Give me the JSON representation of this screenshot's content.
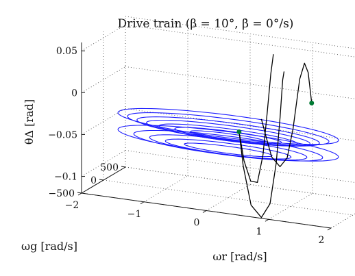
{
  "chart_data": {
    "type": "line3d",
    "title": "Drive train (β = 10°, β̇ = 0°/s)",
    "xlabel": "ωr [rad/s]",
    "ylabel": "ωg [rad/s]",
    "zlabel": "θΔ [rad]",
    "x_ticks": [
      "−2",
      "−1",
      "0",
      "1",
      "2"
    ],
    "y_ticks": [
      "500",
      "0",
      "−500"
    ],
    "z_ticks": [
      "0.05",
      "0",
      "−0.05",
      "−0.1"
    ],
    "xlim": [
      -2,
      2
    ],
    "ylim": [
      -500,
      500
    ],
    "zlim": [
      -0.12,
      0.06
    ],
    "grid": true,
    "series": [
      {
        "kind": "limit-cycle",
        "color": "#1a1aff",
        "rings": [
          {
            "rx": 1.75,
            "ry": 360,
            "z": -0.035
          },
          {
            "rx": 1.6,
            "ry": 320,
            "z": -0.038
          },
          {
            "rx": 1.45,
            "ry": 280,
            "z": -0.041
          },
          {
            "rx": 1.3,
            "ry": 240,
            "z": -0.043
          },
          {
            "rx": 1.1,
            "ry": 190,
            "z": -0.045
          },
          {
            "rx": 0.85,
            "ry": 140,
            "z": -0.046
          },
          {
            "rx": 0.6,
            "ry": 90,
            "z": -0.047
          },
          {
            "rx": 1.75,
            "ry": 360,
            "z": -0.055
          },
          {
            "rx": 1.5,
            "ry": 300,
            "z": -0.058
          },
          {
            "rx": 1.25,
            "ry": 240,
            "z": -0.06
          },
          {
            "rx": 1.0,
            "ry": 180,
            "z": -0.062
          },
          {
            "rx": 0.7,
            "ry": 110,
            "z": -0.063
          }
        ]
      },
      {
        "kind": "trajectory",
        "color": "#000000",
        "points": [
          [
            0.35,
            -250,
            -0.03
          ],
          [
            0.42,
            -255,
            -0.07
          ],
          [
            0.55,
            -262,
            -0.115
          ],
          [
            0.72,
            -268,
            -0.128
          ],
          [
            0.86,
            -270,
            -0.11
          ],
          [
            0.96,
            -270,
            -0.06
          ],
          [
            1.02,
            -268,
            -0.005
          ],
          [
            1.06,
            -265,
            0.04
          ],
          [
            1.08,
            -262,
            0.05
          ]
        ]
      },
      {
        "kind": "trajectory",
        "color": "#000000",
        "points": [
          [
            0.35,
            -250,
            -0.03
          ],
          [
            0.4,
            -210,
            -0.065
          ],
          [
            0.48,
            -170,
            -0.09
          ],
          [
            0.56,
            -130,
            -0.092
          ],
          [
            0.62,
            -90,
            -0.06
          ],
          [
            0.66,
            -50,
            -0.01
          ],
          [
            0.69,
            -10,
            0.035
          ],
          [
            0.71,
            20,
            0.058
          ]
        ]
      },
      {
        "kind": "trajectory",
        "color": "#000000",
        "points": [
          [
            1.12,
            310,
            -0.005
          ],
          [
            1.05,
            330,
            0.03
          ],
          [
            0.98,
            345,
            0.04
          ],
          [
            0.9,
            350,
            0.02
          ],
          [
            0.8,
            340,
            -0.04
          ],
          [
            0.72,
            320,
            -0.075
          ],
          [
            0.62,
            300,
            -0.086
          ],
          [
            0.5,
            280,
            -0.075
          ],
          [
            0.42,
            260,
            -0.05
          ],
          [
            0.36,
            245,
            -0.03
          ]
        ]
      }
    ],
    "markers": [
      {
        "x": 0.35,
        "y": -250,
        "z": -0.03,
        "color": "#007a33"
      },
      {
        "x": 1.12,
        "y": 310,
        "z": -0.005,
        "color": "#007a33"
      }
    ]
  }
}
